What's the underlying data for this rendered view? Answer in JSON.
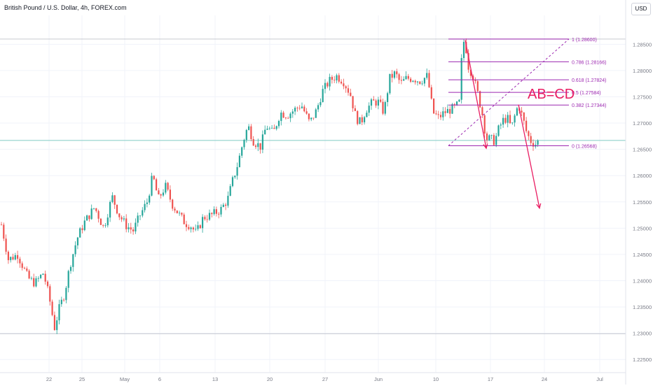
{
  "header": {
    "symbol_title": "British Pound / U.S. Dollar, 4h, FOREX.com",
    "currency_button": "USD"
  },
  "annotation_text": "AB=CD",
  "colors": {
    "up": "#26a69a",
    "down": "#ef5350",
    "fib": "#9c27b0",
    "pattern": "#e91e63",
    "price_line": "#80cbc4",
    "grid": "#f0f3fa",
    "axis_text": "#787b86"
  },
  "chart_data": {
    "type": "candlestick",
    "title": "British Pound / U.S. Dollar, 4h, FOREX.com",
    "ylim": [
      1.2225,
      1.2905
    ],
    "y_ticks": [
      "1.22500",
      "1.23000",
      "1.23500",
      "1.24000",
      "1.24500",
      "1.25000",
      "1.25500",
      "1.26000",
      "1.26500",
      "1.27000",
      "1.27500",
      "1.28000",
      "1.28500"
    ],
    "x_ticks": [
      "22",
      "25",
      "May",
      "6",
      "13",
      "20",
      "27",
      "Jun",
      "10",
      "17",
      "24",
      "Jul"
    ],
    "anchors": [
      [
        0,
        1.252
      ],
      [
        12,
        1.244
      ],
      [
        25,
        1.245
      ],
      [
        40,
        1.2405
      ],
      [
        50,
        1.2395
      ],
      [
        62,
        1.2415
      ],
      [
        70,
        1.237
      ],
      [
        78,
        1.231
      ],
      [
        84,
        1.2345
      ],
      [
        92,
        1.2375
      ],
      [
        100,
        1.243
      ],
      [
        110,
        1.248
      ],
      [
        120,
        1.251
      ],
      [
        135,
        1.254
      ],
      [
        148,
        1.25
      ],
      [
        160,
        1.256
      ],
      [
        170,
        1.2525
      ],
      [
        180,
        1.2505
      ],
      [
        190,
        1.2495
      ],
      [
        200,
        1.2525
      ],
      [
        210,
        1.255
      ],
      [
        218,
        1.26
      ],
      [
        226,
        1.2555
      ],
      [
        236,
        1.258
      ],
      [
        246,
        1.2545
      ],
      [
        256,
        1.2525
      ],
      [
        264,
        1.251
      ],
      [
        272,
        1.2505
      ],
      [
        280,
        1.249
      ],
      [
        290,
        1.252
      ],
      [
        302,
        1.2525
      ],
      [
        315,
        1.2535
      ],
      [
        325,
        1.2555
      ],
      [
        332,
        1.259
      ],
      [
        340,
        1.2625
      ],
      [
        347,
        1.2665
      ],
      [
        354,
        1.2695
      ],
      [
        362,
        1.2665
      ],
      [
        372,
        1.2655
      ],
      [
        380,
        1.2695
      ],
      [
        390,
        1.268
      ],
      [
        400,
        1.272
      ],
      [
        410,
        1.2715
      ],
      [
        420,
        1.2725
      ],
      [
        430,
        1.2735
      ],
      [
        442,
        1.27
      ],
      [
        452,
        1.2725
      ],
      [
        460,
        1.276
      ],
      [
        470,
        1.278
      ],
      [
        480,
        1.279
      ],
      [
        490,
        1.278
      ],
      [
        500,
        1.2755
      ],
      [
        508,
        1.271
      ],
      [
        515,
        1.27
      ],
      [
        522,
        1.2725
      ],
      [
        532,
        1.274
      ],
      [
        540,
        1.274
      ],
      [
        548,
        1.272
      ],
      [
        556,
        1.2785
      ],
      [
        564,
        1.2795
      ],
      [
        572,
        1.2775
      ],
      [
        580,
        1.2785
      ],
      [
        590,
        1.2785
      ],
      [
        600,
        1.278
      ],
      [
        610,
        1.279
      ],
      [
        618,
        1.272
      ],
      [
        626,
        1.271
      ],
      [
        634,
        1.272
      ],
      [
        642,
        1.2725
      ],
      [
        650,
        1.273
      ],
      [
        656,
        1.274
      ],
      [
        660,
        1.2855
      ],
      [
        664,
        1.2855
      ],
      [
        668,
        1.281
      ],
      [
        675,
        1.279
      ],
      [
        682,
        1.2755
      ],
      [
        688,
        1.272
      ],
      [
        694,
        1.267
      ],
      [
        700,
        1.267
      ],
      [
        706,
        1.2665
      ],
      [
        712,
        1.269
      ],
      [
        718,
        1.2705
      ],
      [
        724,
        1.271
      ],
      [
        730,
        1.269
      ],
      [
        736,
        1.272
      ],
      [
        740,
        1.2735
      ],
      [
        746,
        1.271
      ],
      [
        752,
        1.268
      ],
      [
        758,
        1.2665
      ],
      [
        764,
        1.266
      ],
      [
        768,
        1.2665
      ]
    ],
    "fib_levels": [
      {
        "label": "1 (1.28600)",
        "price": 1.286
      },
      {
        "label": "0.786 (1.28166)",
        "price": 1.28166
      },
      {
        "label": "0.618 (1.27824)",
        "price": 1.27824
      },
      {
        "label": "0.5 (1.27584)",
        "price": 1.27584
      },
      {
        "label": "0.382 (1.27344)",
        "price": 1.27344
      },
      {
        "label": "0 (1.26568)",
        "price": 1.26568
      }
    ],
    "current_price": 1.2667,
    "horizontal_levels": [
      1.286,
      1.2299
    ]
  }
}
